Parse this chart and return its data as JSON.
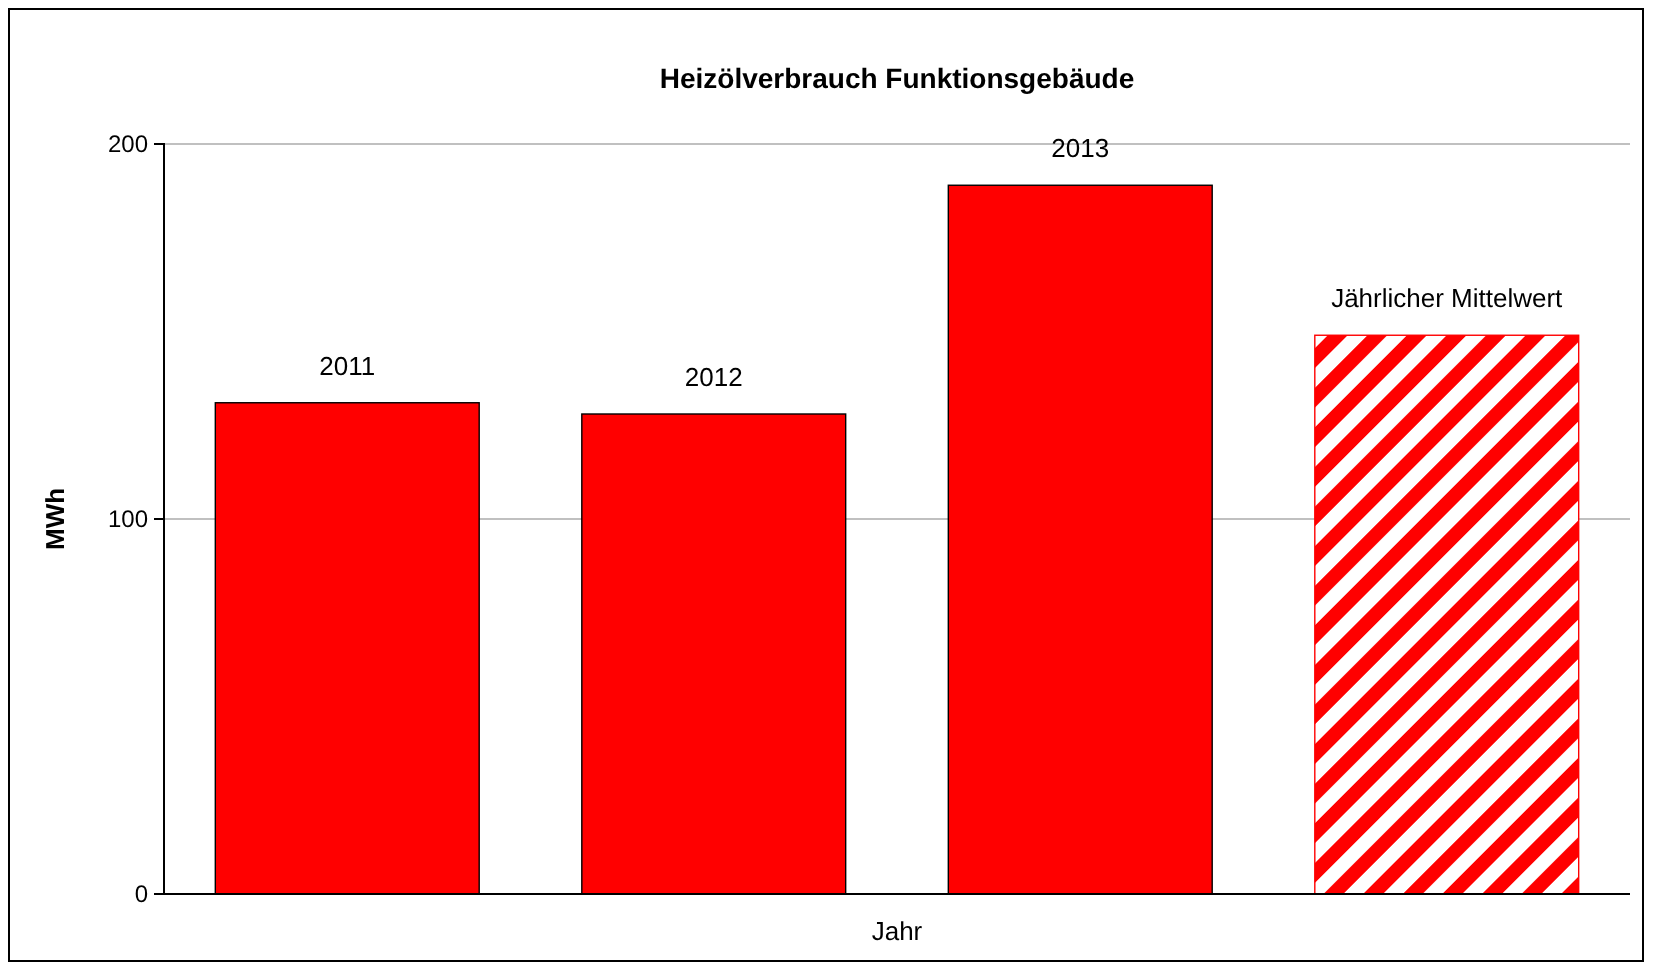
{
  "chart_data": {
    "type": "bar",
    "title": "Heizölverbrauch Funktionsgebäude",
    "xlabel": "Jahr",
    "ylabel": "MWh",
    "categories": [
      "2011",
      "2012",
      "2013",
      "Jährlicher Mittelwert"
    ],
    "series": [
      {
        "color": "#ff0000",
        "values": [
          131,
          128,
          189,
          null
        ]
      },
      {
        "color": "#ff0000",
        "values": [
          null,
          null,
          null,
          149
        ]
      }
    ],
    "ylim": [
      0,
      200
    ],
    "yticks": [
      0,
      100,
      200
    ],
    "grid": "y",
    "tick_labels": "y"
  }
}
